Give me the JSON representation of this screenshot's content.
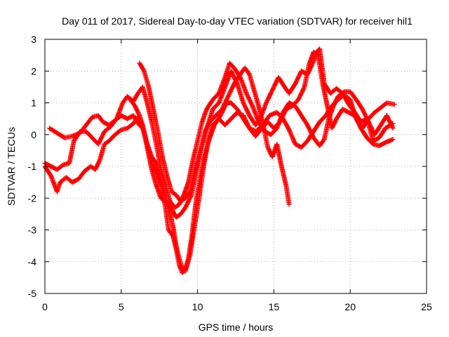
{
  "chart_data": {
    "type": "scatter",
    "title": "Day 011 of 2017, Sidereal Day-to-day VTEC variation (SDTVAR) for receiver hil1",
    "xlabel": "GPS time / hours",
    "ylabel": "SDTVAR / TECUs",
    "xlim": [
      0,
      25
    ],
    "ylim": [
      -5,
      3
    ],
    "xticks": [
      "0",
      "5",
      "10",
      "15",
      "20",
      "25"
    ],
    "yticks": [
      "-5",
      "-4",
      "-3",
      "-2",
      "-1",
      "0",
      "1",
      "2",
      "3"
    ],
    "grid": true,
    "marker": "plus",
    "color": "#ff0000",
    "series": [
      {
        "points": [
          [
            0.0,
            -1.0
          ],
          [
            0.4,
            -1.3
          ],
          [
            0.8,
            -1.8
          ],
          [
            1.0,
            -1.5
          ],
          [
            1.4,
            -1.35
          ],
          [
            1.8,
            -1.5
          ],
          [
            2.2,
            -1.4
          ],
          [
            2.6,
            -1.15
          ],
          [
            3.0,
            -1.0
          ],
          [
            3.3,
            -1.1
          ],
          [
            3.6,
            -0.8
          ],
          [
            3.9,
            -0.3
          ],
          [
            4.2,
            -0.2
          ],
          [
            4.6,
            0.0
          ],
          [
            5.0,
            0.15
          ],
          [
            5.4,
            0.2
          ],
          [
            5.8,
            0.35
          ],
          [
            6.1,
            0.55
          ],
          [
            6.4,
            0.3
          ],
          [
            6.7,
            -0.4
          ],
          [
            7.0,
            -1.1
          ],
          [
            7.3,
            -1.6
          ],
          [
            7.6,
            -2.0
          ],
          [
            8.0,
            -2.15
          ],
          [
            8.3,
            -2.35
          ],
          [
            8.6,
            -2.6
          ],
          [
            8.9,
            -2.5
          ],
          [
            9.2,
            -2.3
          ],
          [
            9.6,
            -1.9
          ],
          [
            9.9,
            -1.2
          ],
          [
            10.2,
            -0.5
          ],
          [
            10.5,
            0.1
          ],
          [
            10.8,
            0.4
          ],
          [
            11.2,
            0.6
          ],
          [
            11.6,
            0.8
          ],
          [
            12.0,
            1.2
          ],
          [
            12.4,
            1.6
          ],
          [
            12.8,
            1.9
          ],
          [
            13.1,
            2.1
          ],
          [
            13.4,
            1.9
          ],
          [
            13.7,
            1.4
          ],
          [
            14.0,
            0.9
          ],
          [
            14.3,
            0.3
          ],
          [
            14.6,
            -0.4
          ],
          [
            14.9,
            -0.7
          ],
          [
            15.2,
            -0.3
          ],
          [
            15.5,
            -1.0
          ],
          [
            15.8,
            -1.6
          ],
          [
            16.0,
            -2.2
          ]
        ]
      },
      {
        "points": [
          [
            0.3,
            0.2
          ],
          [
            0.8,
            0.05
          ],
          [
            1.3,
            -0.1
          ],
          [
            1.8,
            -0.05
          ],
          [
            2.3,
            0.05
          ],
          [
            2.7,
            0.3
          ],
          [
            3.1,
            0.55
          ],
          [
            3.5,
            0.6
          ],
          [
            3.8,
            0.4
          ],
          [
            4.2,
            0.3
          ],
          [
            4.6,
            0.45
          ],
          [
            5.0,
            0.6
          ],
          [
            5.4,
            0.5
          ],
          [
            5.8,
            0.6
          ],
          [
            6.1,
            0.35
          ],
          [
            6.4,
            0.2
          ],
          [
            6.7,
            -0.3
          ],
          [
            7.0,
            -0.7
          ],
          [
            7.3,
            -0.9
          ],
          [
            7.7,
            -1.6
          ],
          [
            8.1,
            -2.3
          ],
          [
            8.4,
            -2.9
          ],
          [
            8.6,
            -3.5
          ],
          [
            8.8,
            -3.9
          ],
          [
            9.0,
            -4.2
          ],
          [
            9.2,
            -4.3
          ],
          [
            9.5,
            -3.8
          ],
          [
            9.8,
            -2.9
          ],
          [
            10.1,
            -2.0
          ],
          [
            10.4,
            -1.0
          ],
          [
            10.7,
            -0.2
          ],
          [
            11.0,
            0.3
          ],
          [
            11.4,
            0.5
          ],
          [
            11.8,
            0.3
          ],
          [
            12.2,
            0.5
          ],
          [
            12.6,
            0.7
          ],
          [
            13.0,
            0.6
          ],
          [
            13.4,
            0.2
          ],
          [
            13.8,
            -0.05
          ],
          [
            14.2,
            0.2
          ],
          [
            14.6,
            0.4
          ],
          [
            15.0,
            0.2
          ],
          [
            15.4,
            0.4
          ],
          [
            15.8,
            0.8
          ],
          [
            16.2,
            0.9
          ],
          [
            16.6,
            1.1
          ],
          [
            17.0,
            1.5
          ],
          [
            17.3,
            2.2
          ],
          [
            17.6,
            2.6
          ],
          [
            17.9,
            2.5
          ],
          [
            18.2,
            1.6
          ],
          [
            18.5,
            0.9
          ],
          [
            18.8,
            0.2
          ],
          [
            19.1,
            0.5
          ],
          [
            19.5,
            0.8
          ],
          [
            19.9,
            0.7
          ],
          [
            20.3,
            0.6
          ],
          [
            20.7,
            0.2
          ],
          [
            21.1,
            -0.1
          ],
          [
            21.5,
            -0.3
          ],
          [
            21.9,
            -0.35
          ],
          [
            22.3,
            -0.25
          ],
          [
            22.8,
            -0.15
          ]
        ]
      },
      {
        "points": [
          [
            0.0,
            -0.9
          ],
          [
            0.4,
            -1.0
          ],
          [
            0.8,
            -1.1
          ],
          [
            1.2,
            -0.95
          ],
          [
            1.6,
            -0.9
          ],
          [
            1.9,
            -0.2
          ],
          [
            2.3,
            0.1
          ],
          [
            2.7,
            0.1
          ],
          [
            3.1,
            -0.1
          ],
          [
            3.5,
            -0.3
          ],
          [
            3.9,
            0.1
          ],
          [
            4.3,
            0.25
          ],
          [
            4.7,
            0.5
          ],
          [
            5.1,
            1.0
          ],
          [
            5.4,
            1.2
          ],
          [
            5.8,
            1.05
          ],
          [
            6.1,
            1.3
          ],
          [
            6.4,
            1.5
          ],
          [
            6.7,
            1.0
          ],
          [
            7.0,
            0.4
          ],
          [
            7.3,
            -0.3
          ],
          [
            7.6,
            -1.1
          ],
          [
            7.9,
            -1.6
          ],
          [
            8.2,
            -2.1
          ],
          [
            8.5,
            -2.3
          ],
          [
            8.8,
            -2.2
          ],
          [
            9.1,
            -1.9
          ],
          [
            9.4,
            -1.5
          ],
          [
            9.7,
            -0.8
          ],
          [
            10.0,
            -0.2
          ],
          [
            10.3,
            0.4
          ],
          [
            10.6,
            0.8
          ],
          [
            11.0,
            1.1
          ],
          [
            11.4,
            1.3
          ],
          [
            11.8,
            1.8
          ],
          [
            12.1,
            2.25
          ],
          [
            12.4,
            2.1
          ],
          [
            12.8,
            1.8
          ],
          [
            13.2,
            1.3
          ],
          [
            13.6,
            0.9
          ],
          [
            14.0,
            0.4
          ],
          [
            14.4,
            0.1
          ],
          [
            14.8,
            0.0
          ],
          [
            15.2,
            0.2
          ],
          [
            15.6,
            0.7
          ],
          [
            16.0,
            1.0
          ],
          [
            16.4,
            0.9
          ],
          [
            16.8,
            0.6
          ],
          [
            17.2,
            0.3
          ],
          [
            17.6,
            -0.1
          ],
          [
            18.0,
            -0.35
          ],
          [
            18.3,
            -0.15
          ],
          [
            18.6,
            0.5
          ],
          [
            18.9,
            0.9
          ],
          [
            19.2,
            1.2
          ],
          [
            19.6,
            1.35
          ],
          [
            20.0,
            1.35
          ],
          [
            20.4,
            1.1
          ],
          [
            20.8,
            0.8
          ],
          [
            21.2,
            0.4
          ],
          [
            21.6,
            0.0
          ],
          [
            22.0,
            0.3
          ],
          [
            22.4,
            0.6
          ],
          [
            22.8,
            0.2
          ]
        ]
      },
      {
        "points": [
          [
            5.6,
            1.1
          ],
          [
            5.9,
            0.9
          ],
          [
            6.2,
            0.6
          ],
          [
            6.4,
            0.3
          ],
          [
            6.7,
            -0.3
          ],
          [
            7.0,
            -0.9
          ],
          [
            7.3,
            -1.2
          ],
          [
            7.6,
            -1.6
          ],
          [
            7.9,
            -2.3
          ],
          [
            8.1,
            -3.0
          ],
          [
            8.4,
            -3.2
          ],
          [
            8.6,
            -3.6
          ],
          [
            8.8,
            -4.1
          ],
          [
            9.0,
            -4.35
          ],
          [
            9.2,
            -4.25
          ],
          [
            9.4,
            -3.9
          ],
          [
            9.6,
            -3.3
          ],
          [
            9.9,
            -2.1
          ],
          [
            10.2,
            -1.3
          ],
          [
            10.5,
            -0.6
          ],
          [
            10.8,
            -0.1
          ],
          [
            11.1,
            0.3
          ],
          [
            11.5,
            0.6
          ],
          [
            11.9,
            1.0
          ],
          [
            12.2,
            1.0
          ],
          [
            12.6,
            0.8
          ],
          [
            13.0,
            0.5
          ],
          [
            13.4,
            0.2
          ],
          [
            13.8,
            0.1
          ],
          [
            14.3,
            0.3
          ],
          [
            14.7,
            0.6
          ],
          [
            15.2,
            0.7
          ],
          [
            15.6,
            0.5
          ],
          [
            16.0,
            0.15
          ],
          [
            16.4,
            -0.3
          ],
          [
            16.8,
            -0.4
          ],
          [
            17.2,
            -0.2
          ],
          [
            17.6,
            0.1
          ],
          [
            18.0,
            0.4
          ],
          [
            18.4,
            0.6
          ],
          [
            18.8,
            0.9
          ],
          [
            19.2,
            1.1
          ],
          [
            19.6,
            1.25
          ],
          [
            20.0,
            1.1
          ],
          [
            20.4,
            0.5
          ],
          [
            20.8,
            0.2
          ],
          [
            21.2,
            0.5
          ],
          [
            21.6,
            0.7
          ],
          [
            22.0,
            0.85
          ],
          [
            22.4,
            1.0
          ],
          [
            22.9,
            0.95
          ]
        ]
      },
      {
        "points": [
          [
            6.2,
            2.25
          ],
          [
            6.5,
            2.0
          ],
          [
            6.8,
            1.5
          ],
          [
            7.1,
            0.8
          ],
          [
            7.4,
            0.1
          ],
          [
            7.7,
            -0.7
          ],
          [
            8.0,
            -1.3
          ],
          [
            8.3,
            -1.8
          ],
          [
            8.6,
            -1.9
          ],
          [
            8.9,
            -2.1
          ],
          [
            9.2,
            -2.0
          ],
          [
            9.5,
            -1.8
          ],
          [
            9.8,
            -1.2
          ],
          [
            10.2,
            -0.5
          ],
          [
            10.6,
            0.2
          ],
          [
            11.0,
            0.8
          ],
          [
            11.4,
            1.0
          ],
          [
            11.8,
            1.5
          ],
          [
            12.2,
            2.0
          ],
          [
            12.6,
            1.6
          ],
          [
            13.0,
            1.0
          ],
          [
            13.4,
            0.6
          ],
          [
            13.8,
            0.3
          ],
          [
            14.1,
            0.5
          ],
          [
            14.5,
            1.0
          ],
          [
            14.9,
            1.4
          ],
          [
            15.3,
            1.8
          ],
          [
            15.7,
            1.5
          ],
          [
            16.0,
            1.3
          ],
          [
            16.4,
            1.6
          ],
          [
            16.8,
            2.0
          ],
          [
            17.2,
            1.9
          ],
          [
            17.5,
            2.2
          ],
          [
            17.8,
            2.6
          ],
          [
            18.0,
            2.7
          ],
          [
            18.3,
            1.6
          ],
          [
            18.7,
            1.3
          ],
          [
            19.1,
            1.45
          ],
          [
            19.5,
            1.3
          ],
          [
            19.9,
            0.95
          ],
          [
            20.3,
            0.7
          ],
          [
            20.7,
            0.4
          ],
          [
            21.1,
            0.5
          ],
          [
            21.5,
            -0.2
          ],
          [
            21.9,
            -0.1
          ],
          [
            22.3,
            0.2
          ],
          [
            22.8,
            0.35
          ]
        ]
      }
    ]
  }
}
